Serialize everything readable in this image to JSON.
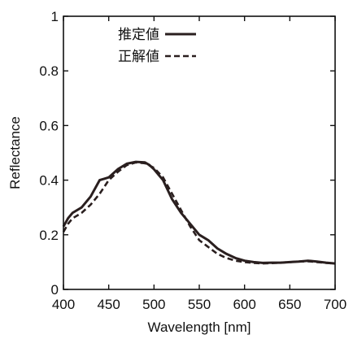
{
  "chart_data": {
    "type": "line",
    "xlabel": "Wavelength [nm]",
    "ylabel": "Reflectance",
    "xlim": [
      400,
      700
    ],
    "ylim": [
      0,
      1
    ],
    "xticks": [
      "400",
      "450",
      "500",
      "550",
      "600",
      "650",
      "700"
    ],
    "yticks": [
      "0",
      "0.2",
      "0.4",
      "0.6",
      "0.8",
      "1"
    ],
    "legend_position": "top-left",
    "grid": false,
    "series": [
      {
        "name": "推定値",
        "style": "solid",
        "color": "#2a1f1f",
        "x": [
          400,
          405,
          410,
          420,
          430,
          440,
          445,
          450,
          460,
          470,
          480,
          490,
          495,
          500,
          505,
          510,
          520,
          530,
          540,
          550,
          555,
          560,
          570,
          580,
          590,
          600,
          610,
          620,
          630,
          640,
          650,
          660,
          670,
          680,
          690,
          700
        ],
        "y": [
          0.23,
          0.26,
          0.28,
          0.3,
          0.34,
          0.4,
          0.405,
          0.41,
          0.44,
          0.46,
          0.467,
          0.465,
          0.455,
          0.44,
          0.42,
          0.4,
          0.33,
          0.28,
          0.24,
          0.2,
          0.19,
          0.18,
          0.15,
          0.13,
          0.115,
          0.105,
          0.1,
          0.097,
          0.098,
          0.098,
          0.1,
          0.102,
          0.105,
          0.102,
          0.098,
          0.095
        ]
      },
      {
        "name": "正解値",
        "style": "dashed",
        "color": "#2a1f1f",
        "x": [
          400,
          405,
          410,
          420,
          430,
          440,
          450,
          460,
          470,
          480,
          490,
          500,
          510,
          520,
          530,
          540,
          550,
          560,
          570,
          580,
          590,
          600,
          610,
          620,
          630,
          640,
          650,
          660,
          670,
          680,
          690,
          700
        ],
        "y": [
          0.21,
          0.24,
          0.26,
          0.28,
          0.31,
          0.35,
          0.4,
          0.43,
          0.455,
          0.465,
          0.462,
          0.445,
          0.41,
          0.35,
          0.29,
          0.23,
          0.18,
          0.155,
          0.13,
          0.115,
          0.105,
          0.1,
          0.097,
          0.095,
          0.096,
          0.098,
          0.1,
          0.102,
          0.103,
          0.1,
          0.097,
          0.095
        ]
      }
    ]
  }
}
